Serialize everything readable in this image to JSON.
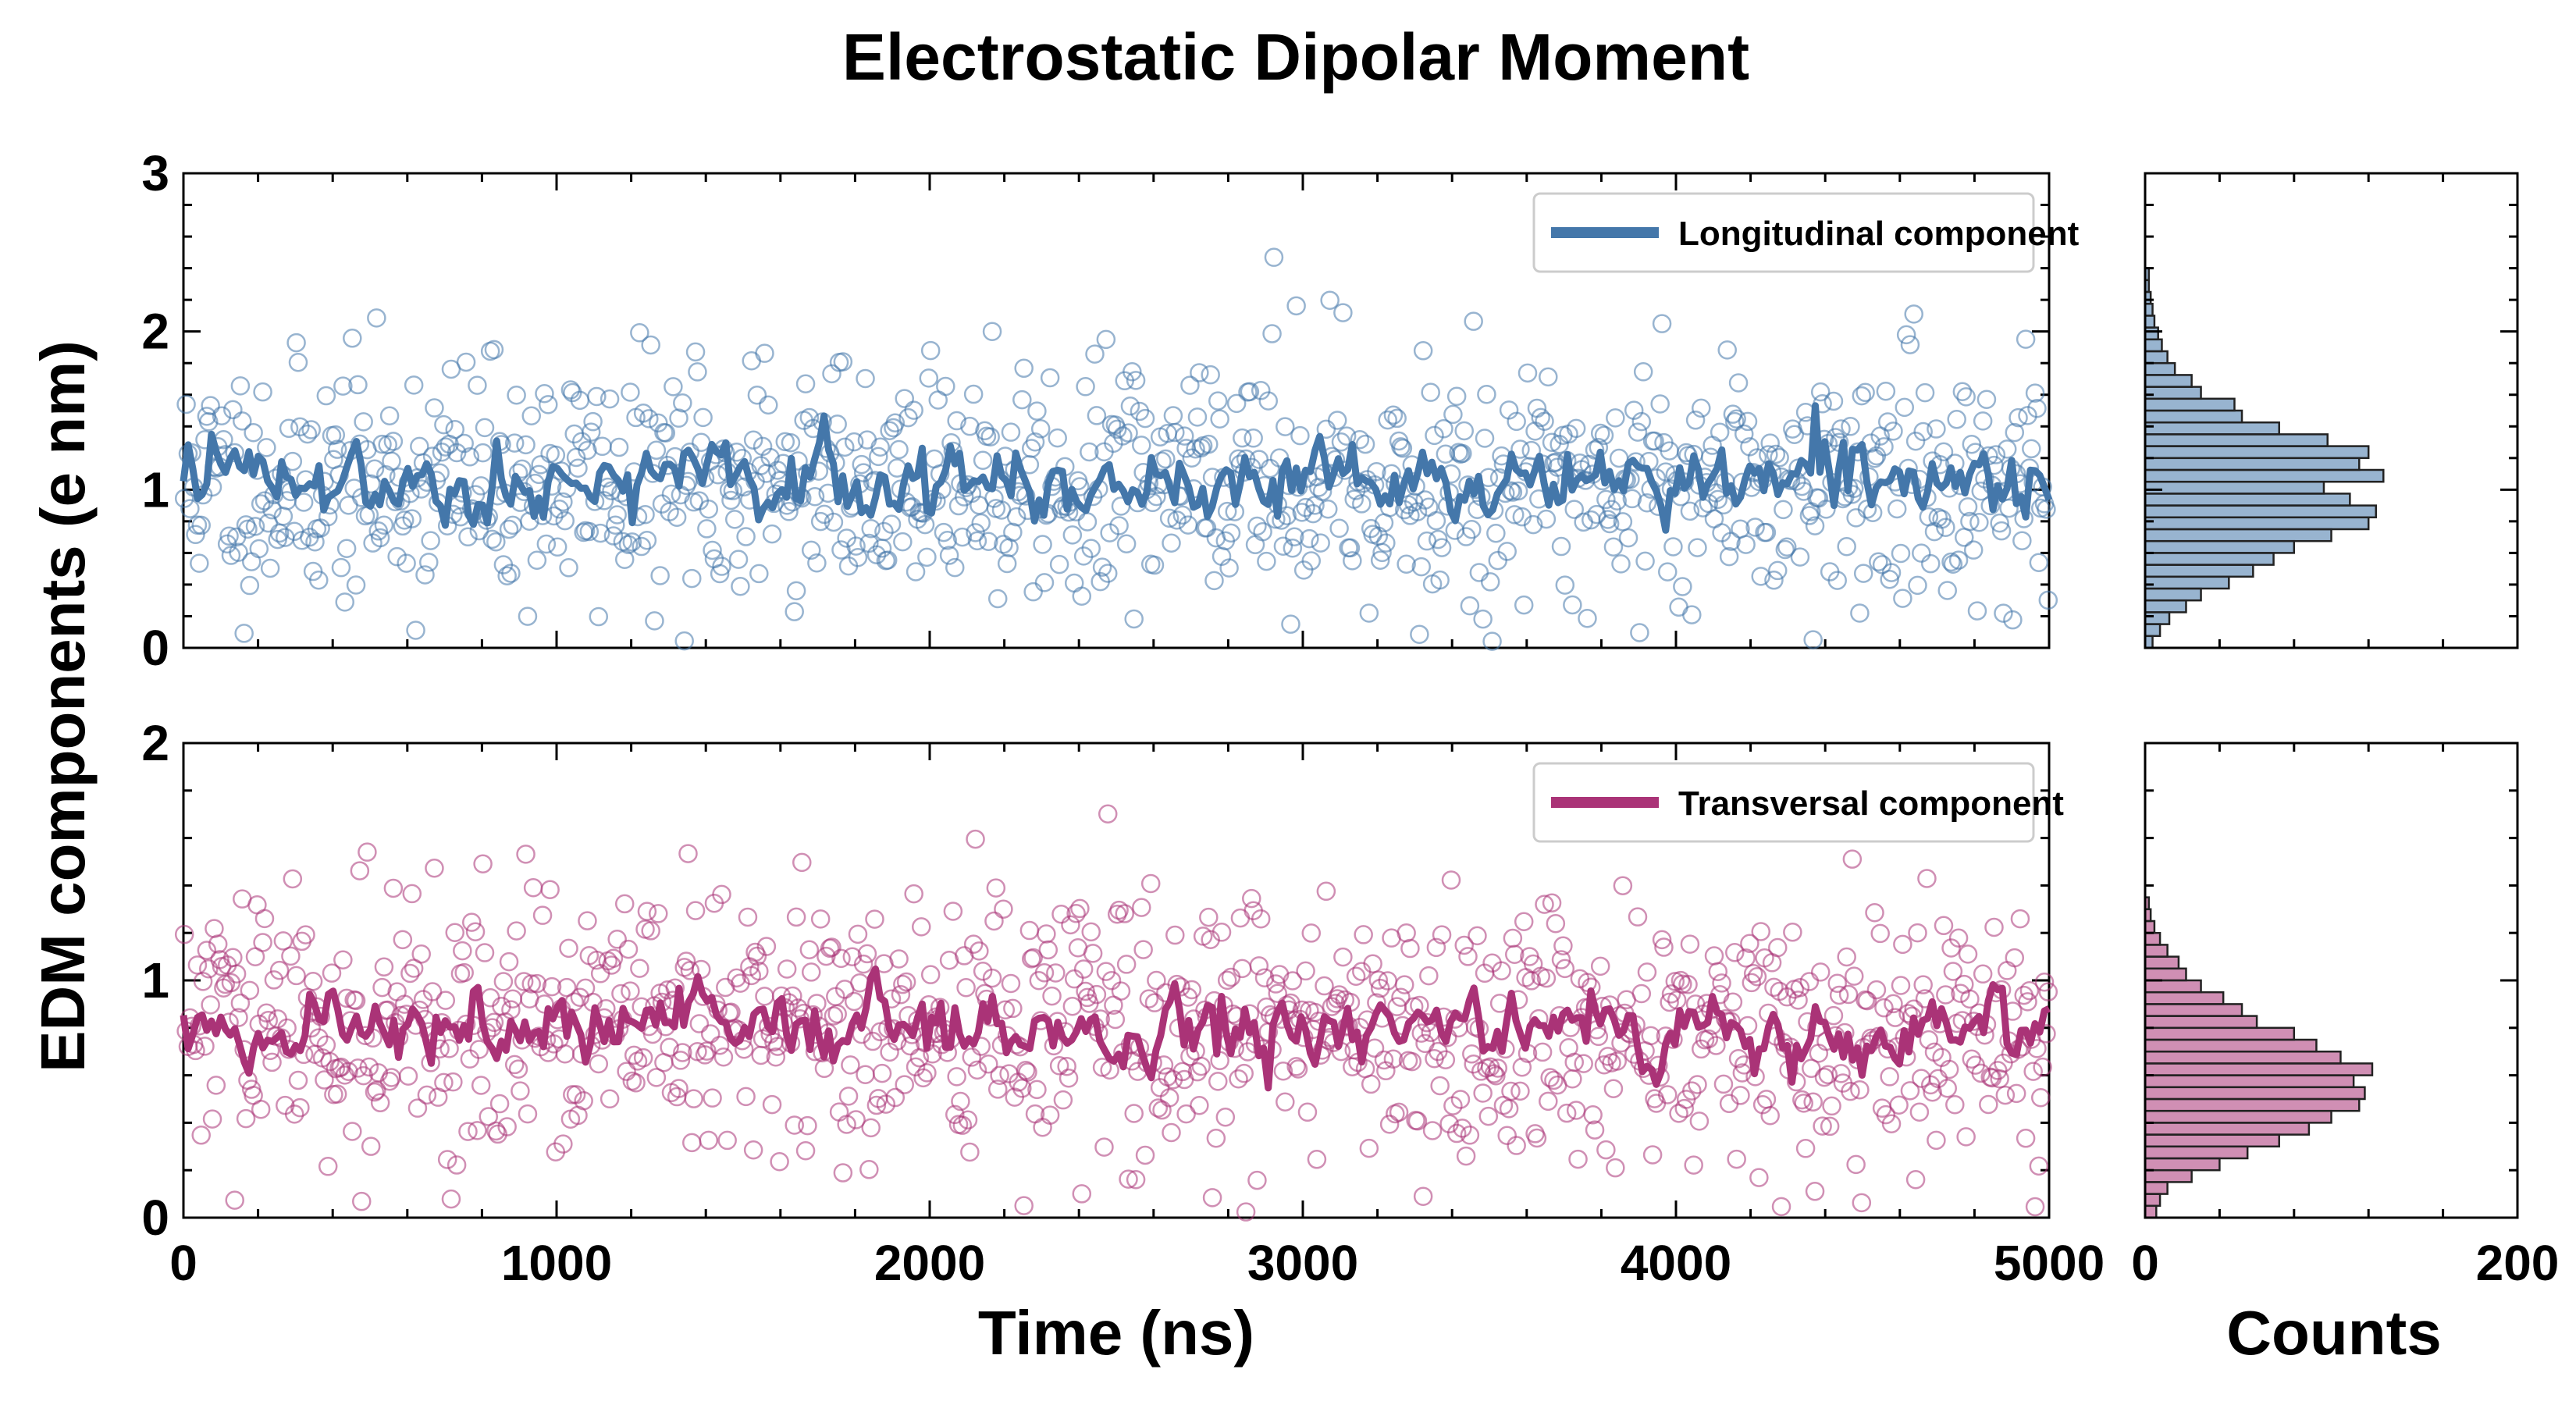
{
  "chart_data": [
    {
      "type": "scatter",
      "panel": "top-main",
      "title": "Electrostatic Dipolar Moment",
      "ylabel": "EDM components (e nm)",
      "xlim": [
        0,
        5000
      ],
      "ylim": [
        0,
        3
      ],
      "xticks": [
        "0",
        "1000",
        "2000",
        "3000",
        "4000",
        "5000"
      ],
      "yticks": [
        "0",
        "1",
        "2",
        "3"
      ],
      "series": [
        {
          "name": "Longitudinal component",
          "mean": 1.05,
          "spread": 0.38,
          "line_spread": 0.18,
          "color": "#4477aa",
          "seed": 11
        }
      ],
      "legend": "top-right"
    },
    {
      "type": "scatter",
      "panel": "bottom-main",
      "xlabel": "Time (ns)",
      "xlim": [
        0,
        5000
      ],
      "ylim": [
        0,
        2
      ],
      "xticks": [
        "0",
        "1000",
        "2000",
        "3000",
        "4000",
        "5000"
      ],
      "yticks": [
        "0",
        "1",
        "2"
      ],
      "series": [
        {
          "name": "Transversal component",
          "mean": 0.8,
          "spread": 0.28,
          "line_spread": 0.13,
          "color": "#aa3377",
          "seed": 29
        }
      ],
      "legend": "top-right"
    },
    {
      "type": "bar",
      "panel": "top-hist",
      "orientation": "horizontal",
      "ylim": [
        0,
        3
      ],
      "xlim": [
        0,
        200
      ],
      "bin_width": 0.075,
      "counts": [
        4,
        8,
        13,
        22,
        30,
        45,
        58,
        69,
        80,
        100,
        120,
        124,
        110,
        96,
        128,
        115,
        120,
        98,
        72,
        52,
        48,
        30,
        25,
        16,
        12,
        9,
        7,
        5,
        4,
        3,
        2,
        2
      ],
      "color": "#4477aa"
    },
    {
      "type": "bar",
      "panel": "bottom-hist",
      "orientation": "horizontal",
      "xlabel": "Counts",
      "ylim": [
        0,
        2
      ],
      "xlim": [
        0,
        200
      ],
      "xticks": [
        "0",
        "200"
      ],
      "bin_width": 0.05,
      "counts": [
        6,
        8,
        12,
        25,
        40,
        55,
        72,
        88,
        100,
        115,
        118,
        112,
        122,
        105,
        92,
        80,
        60,
        52,
        42,
        30,
        22,
        18,
        12,
        8,
        5,
        3,
        2
      ],
      "color": "#aa3377"
    }
  ]
}
